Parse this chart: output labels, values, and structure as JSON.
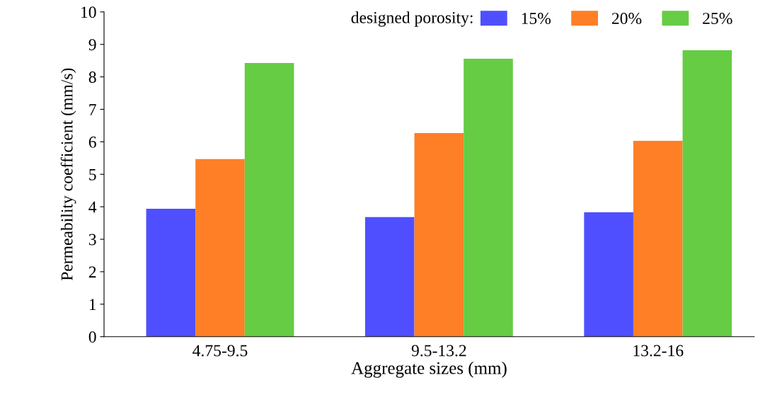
{
  "chart_data": {
    "type": "bar",
    "xlabel": "Aggregate sizes (mm)",
    "ylabel": "Permeability coefficient (mm/s)",
    "legend_title": "designed porosity:",
    "categories": [
      "4.75-9.5",
      "9.5-13.2",
      "13.2-16"
    ],
    "series": [
      {
        "name": "15%",
        "color": "#4f4fff",
        "values": [
          3.94,
          3.68,
          3.83
        ]
      },
      {
        "name": "20%",
        "color": "#ff7f27",
        "values": [
          5.47,
          6.27,
          6.03
        ]
      },
      {
        "name": "25%",
        "color": "#66cc44",
        "values": [
          8.43,
          8.56,
          8.82
        ]
      }
    ],
    "ylim": [
      0,
      10
    ],
    "yticks": [
      0,
      1,
      2,
      3,
      4,
      5,
      6,
      7,
      8,
      9,
      10
    ],
    "grid": false,
    "legend": "top right"
  }
}
